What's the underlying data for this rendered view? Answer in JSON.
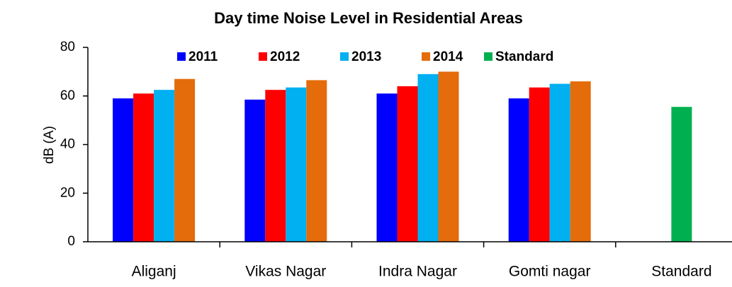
{
  "chart_data": {
    "type": "bar",
    "title": "Day time Noise Level in Residential Areas",
    "ylabel": "dB (A)",
    "categories": [
      "Aliganj",
      "Vikas Nagar",
      "Indra Nagar",
      "Gomti nagar",
      "Standard"
    ],
    "series": [
      {
        "name": "2011",
        "color": "#0000ff",
        "values": [
          59,
          58.5,
          61,
          59,
          null
        ]
      },
      {
        "name": "2012",
        "color": "#ff0000",
        "values": [
          61,
          62.5,
          64,
          63.5,
          null
        ]
      },
      {
        "name": "2013",
        "color": "#00b0f0",
        "values": [
          62.5,
          63.5,
          69,
          65,
          null
        ]
      },
      {
        "name": "2014",
        "color": "#e46c0a",
        "values": [
          67,
          66.5,
          70,
          66,
          null
        ]
      },
      {
        "name": "Standard",
        "color": "#00b050",
        "values": [
          null,
          null,
          null,
          null,
          55.5
        ]
      }
    ],
    "ylim": [
      0,
      80
    ],
    "yticks": [
      0,
      20,
      40,
      60,
      80
    ],
    "grid": false,
    "legend": "top"
  }
}
